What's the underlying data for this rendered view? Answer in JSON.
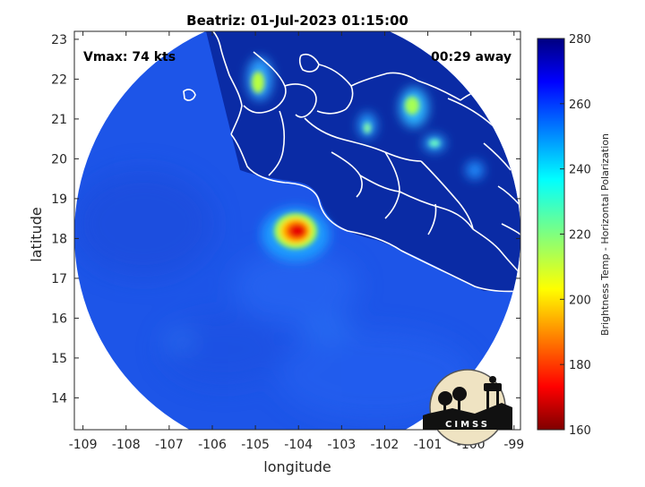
{
  "chart_data": {
    "type": "heatmap",
    "title": "Beatriz: 01-Jul-2023 01:15:00",
    "xlabel": "longitude",
    "ylabel": "latitude",
    "xlim": [
      -109.2,
      -98.85
    ],
    "ylim": [
      13.2,
      23.2
    ],
    "x_ticks": [
      -109,
      -108,
      -107,
      -106,
      -105,
      -104,
      -103,
      -102,
      -101,
      -100,
      -99
    ],
    "x_tick_labels": [
      "-109",
      "-108",
      "-107",
      "-106",
      "-105",
      "-104",
      "-103",
      "-102",
      "-101",
      "-100",
      "-99"
    ],
    "y_ticks": [
      14,
      15,
      16,
      17,
      18,
      19,
      20,
      21,
      22,
      23
    ],
    "y_tick_labels": [
      "14",
      "15",
      "16",
      "17",
      "18",
      "19",
      "20",
      "21",
      "22",
      "23"
    ],
    "colorbar": {
      "label": "Brightness Temp - Horizontal Polarization",
      "range": [
        160,
        280
      ],
      "ticks": [
        160,
        180,
        200,
        220,
        240,
        260,
        280
      ],
      "tick_labels": [
        "160",
        "180",
        "200",
        "220",
        "240",
        "260",
        "280"
      ],
      "colormap": "jet"
    },
    "annotations": {
      "vmax": "Vmax: 74 kts",
      "time_away": "00:29 away"
    },
    "storm_center": {
      "lon": -104.0,
      "lat": 18.2
    },
    "coldest_cores": [
      {
        "lon": -104.0,
        "lat": 18.2,
        "value": 175
      },
      {
        "lon": -104.15,
        "lat": 18.35,
        "value": 185
      },
      {
        "lon": -105.1,
        "lat": 22.0,
        "value": 220
      },
      {
        "lon": -101.6,
        "lat": 21.3,
        "value": 225
      },
      {
        "lon": -102.3,
        "lat": 20.8,
        "value": 235
      },
      {
        "lon": -101.1,
        "lat": 20.3,
        "value": 238
      },
      {
        "lon": -100.2,
        "lat": 19.9,
        "value": 245
      }
    ],
    "background_value": 258,
    "land_value": 270,
    "grid": false
  },
  "logo": {
    "text": "CIMSS"
  },
  "colors": {
    "ocean": "#1c52e6",
    "land": "#0a2aa8",
    "coast": "#ffffff"
  }
}
